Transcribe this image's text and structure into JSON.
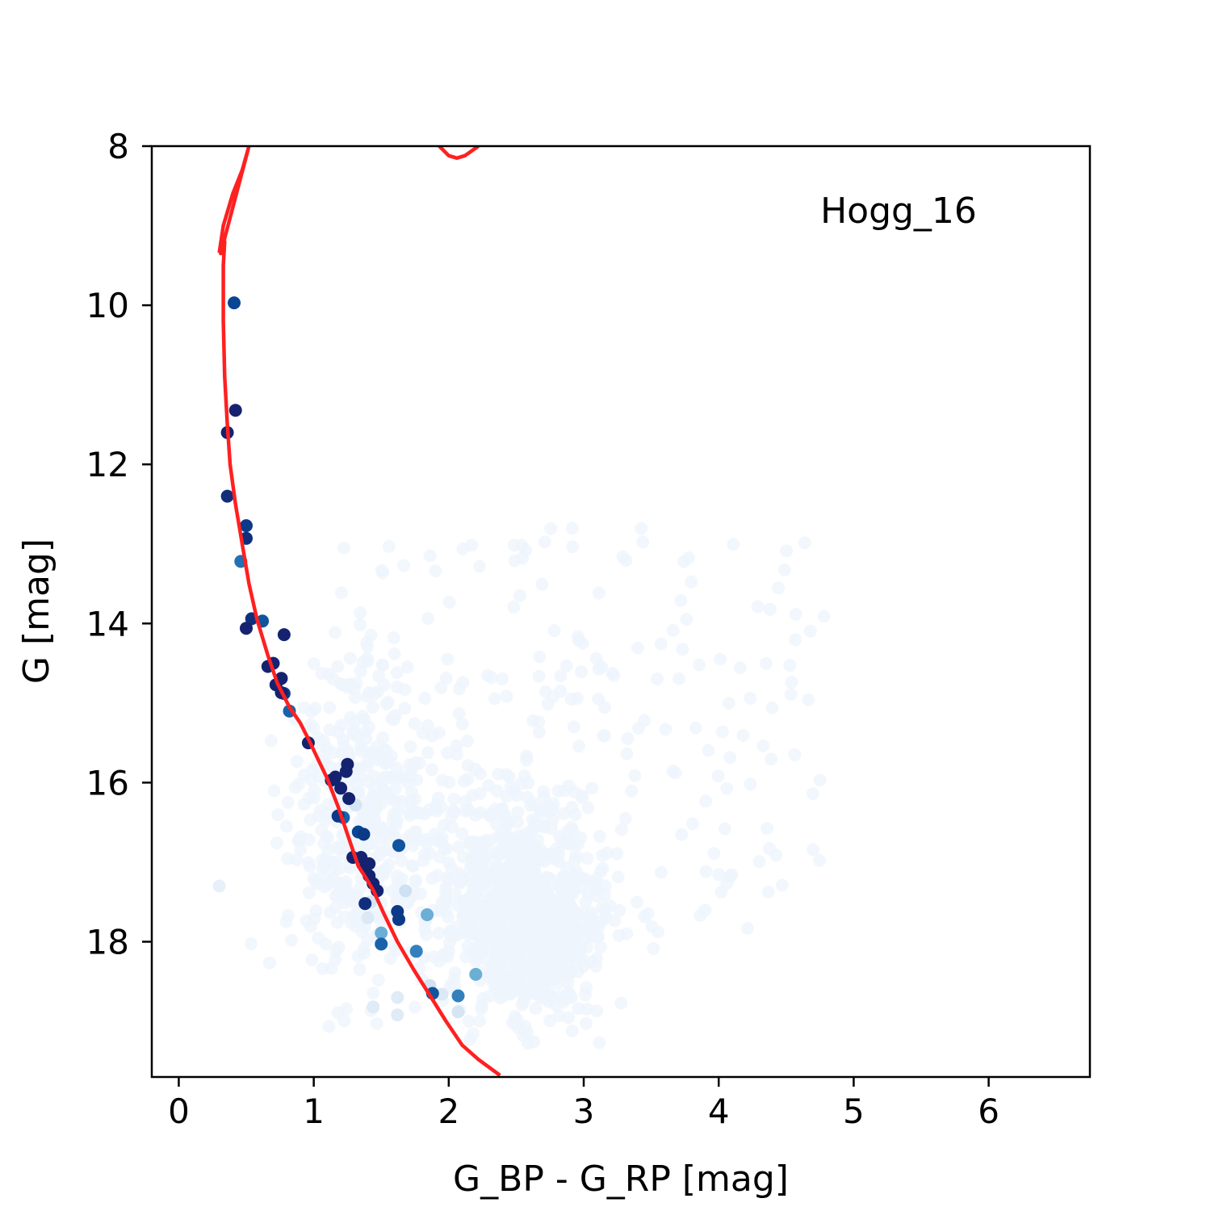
{
  "chart_data": {
    "type": "scatter",
    "title": "",
    "annotation": "Hogg_16",
    "xlabel": "G_BP - G_RP [mag]",
    "ylabel": "G [mag]",
    "xlim": [
      -0.2,
      6.75
    ],
    "ylim": [
      19.7,
      8.0
    ],
    "y_inverted": true,
    "xticks": [
      0,
      1,
      2,
      3,
      4,
      5,
      6
    ],
    "yticks": [
      8,
      10,
      12,
      14,
      16,
      18
    ],
    "grid": false,
    "legend": "none",
    "colormap": "Blues",
    "colors": {
      "isochrone": "#ff2020",
      "member_dark": "#08306b",
      "member_mid": "#2171b5",
      "member_light": "#6baed6",
      "field": "#eef4fc"
    },
    "series": [
      {
        "name": "",
        "kind": "scatter",
        "note": "cluster member candidates colored by membership probability (prob 0-1)",
        "points": [
          [
            0.41,
            9.97,
            0.8
          ],
          [
            0.42,
            11.32,
            0.95
          ],
          [
            0.36,
            11.6,
            0.95
          ],
          [
            0.36,
            12.4,
            0.9
          ],
          [
            0.5,
            12.77,
            0.85
          ],
          [
            0.5,
            12.93,
            0.9
          ],
          [
            0.46,
            13.22,
            0.65
          ],
          [
            0.5,
            14.06,
            0.95
          ],
          [
            0.54,
            13.94,
            0.9
          ],
          [
            0.62,
            13.97,
            0.75
          ],
          [
            0.78,
            14.14,
            0.95
          ],
          [
            0.66,
            14.54,
            0.95
          ],
          [
            0.7,
            14.5,
            0.95
          ],
          [
            0.72,
            14.77,
            0.95
          ],
          [
            0.76,
            14.69,
            0.95
          ],
          [
            0.76,
            14.87,
            0.95
          ],
          [
            0.78,
            14.88,
            0.85
          ],
          [
            0.82,
            15.1,
            0.7
          ],
          [
            0.96,
            15.5,
            0.95
          ],
          [
            1.13,
            15.97,
            0.95
          ],
          [
            1.16,
            15.93,
            0.95
          ],
          [
            1.2,
            16.07,
            0.95
          ],
          [
            1.24,
            15.86,
            0.95
          ],
          [
            1.25,
            15.77,
            0.95
          ],
          [
            1.26,
            16.2,
            0.95
          ],
          [
            1.18,
            16.42,
            0.85
          ],
          [
            1.22,
            16.44,
            0.7
          ],
          [
            1.33,
            16.62,
            0.8
          ],
          [
            1.37,
            16.65,
            0.85
          ],
          [
            1.29,
            16.94,
            0.95
          ],
          [
            1.35,
            16.94,
            0.95
          ],
          [
            1.38,
            17.07,
            0.95
          ],
          [
            1.41,
            17.02,
            0.95
          ],
          [
            1.41,
            17.17,
            0.95
          ],
          [
            1.44,
            17.27,
            0.95
          ],
          [
            1.47,
            17.36,
            0.95
          ],
          [
            1.38,
            17.52,
            0.9
          ],
          [
            1.63,
            16.79,
            0.75
          ],
          [
            1.62,
            17.62,
            0.85
          ],
          [
            1.63,
            17.72,
            0.85
          ],
          [
            1.68,
            17.36,
            0.2
          ],
          [
            1.5,
            17.89,
            0.45
          ],
          [
            1.5,
            18.03,
            0.7
          ],
          [
            1.76,
            18.12,
            0.6
          ],
          [
            1.84,
            17.66,
            0.45
          ],
          [
            1.88,
            18.65,
            0.75
          ],
          [
            2.07,
            18.68,
            0.6
          ],
          [
            2.2,
            18.41,
            0.45
          ],
          [
            1.42,
            17.5,
            0.15
          ],
          [
            1.4,
            17.7,
            0.12
          ],
          [
            1.31,
            16.28,
            0.15
          ],
          [
            1.62,
            18.7,
            0.1
          ],
          [
            1.62,
            18.92,
            0.1
          ],
          [
            1.86,
            18.55,
            0.18
          ],
          [
            2.07,
            18.88,
            0.15
          ],
          [
            0.3,
            17.3,
            0.05
          ],
          [
            1.95,
            18.66,
            0.12
          ],
          [
            1.44,
            18.82,
            0.1
          ]
        ]
      },
      {
        "name": "",
        "kind": "line",
        "note": "red isochrone track (color, magnitude)",
        "points": [
          [
            0.3,
            9.34
          ],
          [
            0.33,
            9.0
          ],
          [
            0.4,
            8.6
          ],
          [
            0.47,
            8.3
          ],
          [
            0.52,
            8.0
          ],
          [
            0.31,
            9.35
          ],
          [
            0.34,
            9.2
          ],
          [
            0.33,
            9.5
          ],
          [
            0.33,
            10.2
          ],
          [
            0.34,
            10.9
          ],
          [
            0.36,
            11.5
          ],
          [
            0.38,
            12.0
          ],
          [
            0.42,
            12.5
          ],
          [
            0.47,
            13.0
          ],
          [
            0.52,
            13.5
          ],
          [
            0.58,
            13.95
          ],
          [
            0.66,
            14.4
          ],
          [
            0.73,
            14.75
          ],
          [
            0.82,
            15.05
          ],
          [
            0.9,
            15.25
          ],
          [
            0.96,
            15.45
          ],
          [
            1.03,
            15.7
          ],
          [
            1.1,
            15.95
          ],
          [
            1.18,
            16.3
          ],
          [
            1.26,
            16.7
          ],
          [
            1.33,
            17.05
          ],
          [
            1.38,
            17.18
          ],
          [
            1.44,
            17.35
          ],
          [
            1.52,
            17.65
          ],
          [
            1.62,
            18.0
          ],
          [
            1.74,
            18.35
          ],
          [
            1.87,
            18.7
          ],
          [
            1.98,
            19.0
          ],
          [
            2.1,
            19.3
          ],
          [
            2.22,
            19.48
          ],
          [
            2.38,
            19.68
          ]
        ],
        "segment2": [
          [
            1.93,
            8.0
          ],
          [
            2.0,
            8.12
          ],
          [
            2.06,
            8.15
          ],
          [
            2.12,
            8.12
          ],
          [
            2.22,
            8.0
          ]
        ]
      }
    ]
  }
}
